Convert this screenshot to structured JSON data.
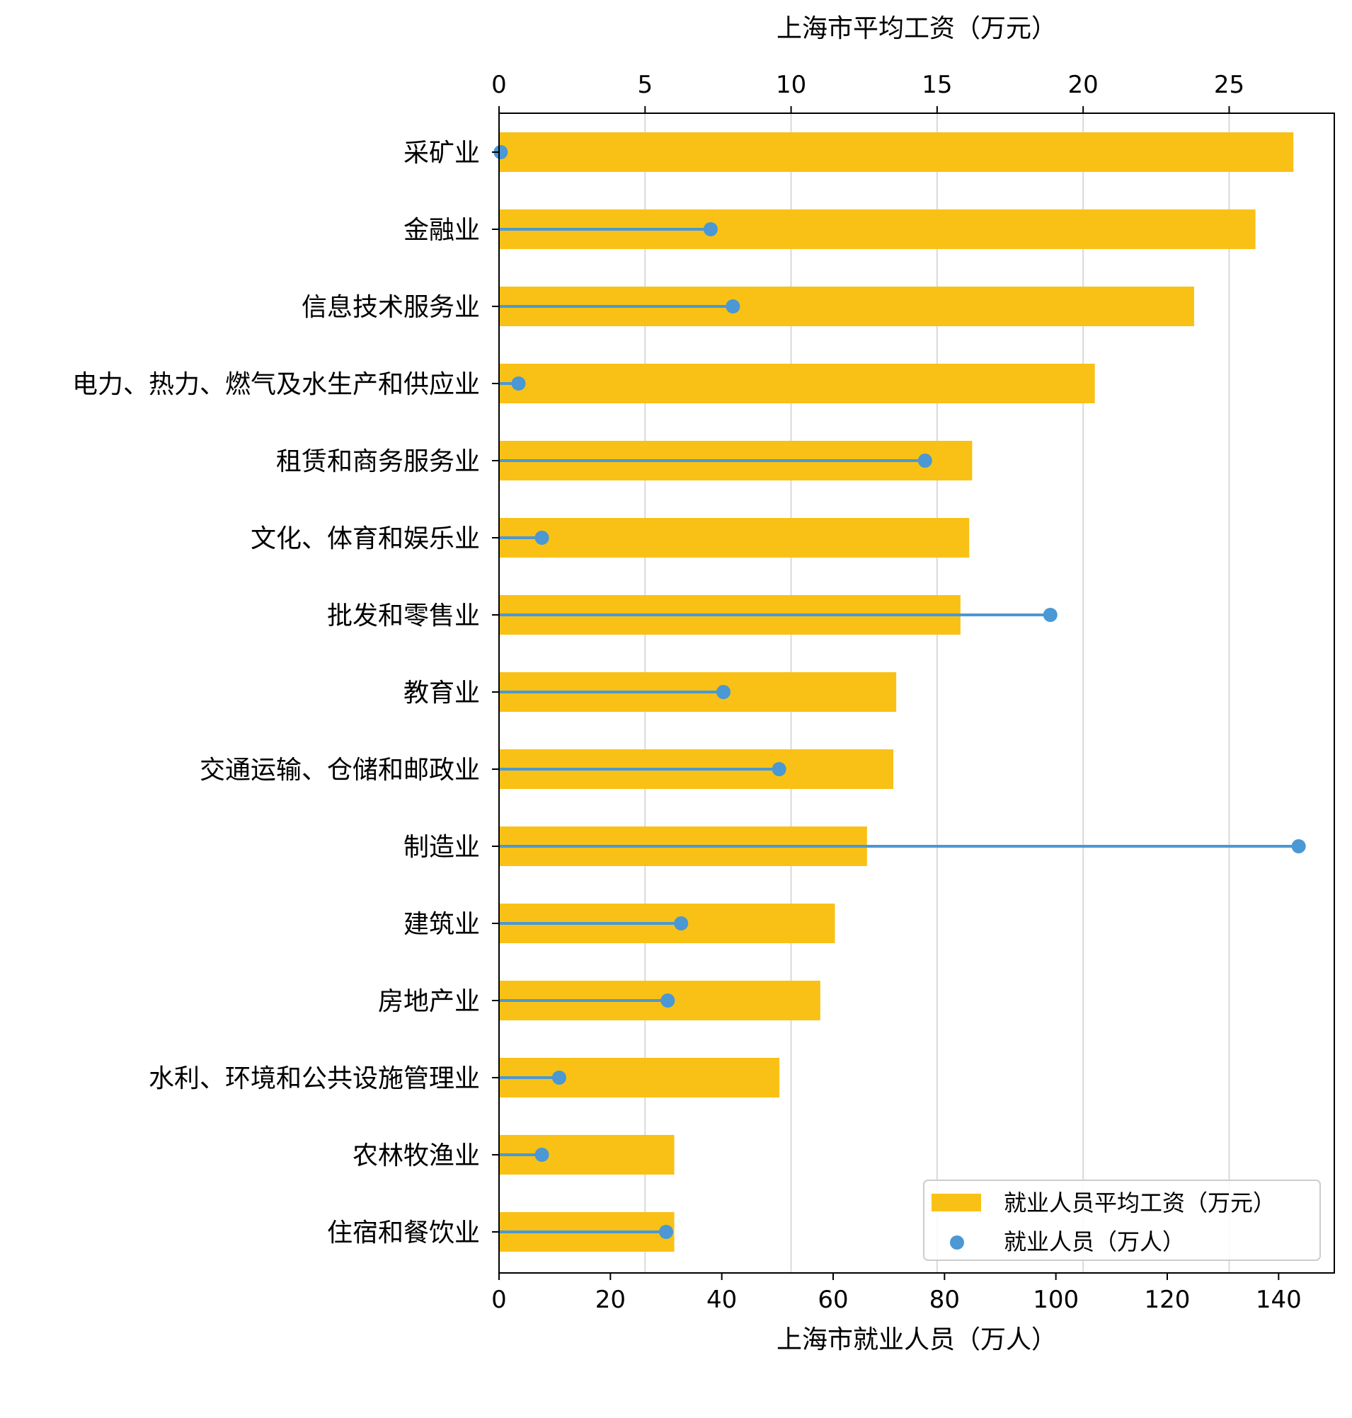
{
  "chart_data": {
    "type": "bar",
    "categories": [
      "采矿业",
      "金融业",
      "信息技术服务业",
      "电力、热力、燃气及水生产和供应业",
      "租赁和商务服务业",
      "文化、体育和娱乐业",
      "批发和零售业",
      "教育业",
      "交通运输、仓储和邮政业",
      "制造业",
      "建筑业",
      "房地产业",
      "水利、环境和公共设施管理业",
      "农林牧渔业",
      "住宿和餐饮业"
    ],
    "series": [
      {
        "name": "就业人员平均工资（万元）",
        "kind": "bar",
        "axis": "top",
        "color": "#f9c116",
        "values": [
          27.2,
          25.9,
          23.8,
          20.4,
          16.2,
          16.1,
          15.8,
          13.6,
          13.5,
          12.6,
          11.5,
          11.0,
          9.6,
          6.0,
          6.0
        ]
      },
      {
        "name": "就业人员（万人）",
        "kind": "lollipop",
        "axis": "bottom",
        "color": "#4a98d4",
        "values": [
          0.3,
          38.0,
          42.0,
          3.5,
          76.5,
          7.7,
          99.0,
          40.3,
          50.3,
          143.6,
          32.7,
          30.3,
          10.8,
          7.7,
          30.0
        ]
      }
    ],
    "xlabel_top": "上海市平均工资（万元）",
    "xlabel_bottom": "上海市就业人员（万人）",
    "xlim_top": [
      0,
      28.6
    ],
    "xlim_bottom": [
      0,
      150
    ],
    "xticks_top": [
      0,
      5,
      10,
      15,
      20,
      25
    ],
    "xticks_bottom": [
      0,
      20,
      40,
      60,
      80,
      100,
      120,
      140
    ],
    "grid": "vertical (top axis)",
    "legend": {
      "position": "lower right"
    }
  }
}
